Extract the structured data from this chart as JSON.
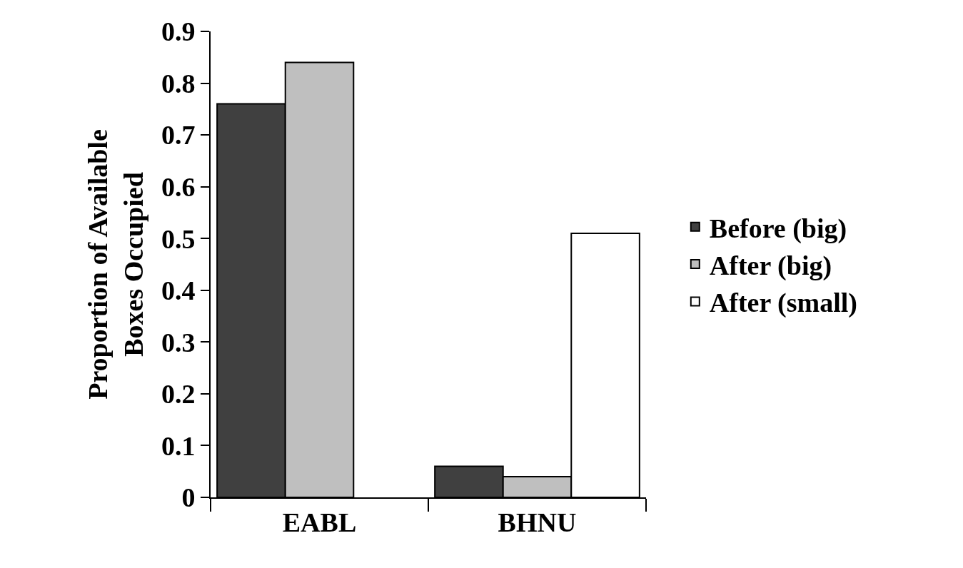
{
  "chart_data": {
    "type": "bar",
    "ylabel": "Proportion of Available Boxes Occupied",
    "categories": [
      "EABL",
      "BHNU"
    ],
    "series": [
      {
        "name": "Before (big)",
        "color": "#404040",
        "values": [
          0.76,
          0.06
        ]
      },
      {
        "name": "After (big)",
        "color": "#bfbfbf",
        "values": [
          0.84,
          0.04
        ]
      },
      {
        "name": "After (small)",
        "color": "#ffffff",
        "values": [
          null,
          0.51
        ]
      }
    ],
    "ylim": [
      0,
      0.9
    ],
    "yticks": [
      0,
      0.1,
      0.2,
      0.3,
      0.4,
      0.5,
      0.6,
      0.7,
      0.8,
      0.9
    ],
    "legend": "right"
  }
}
